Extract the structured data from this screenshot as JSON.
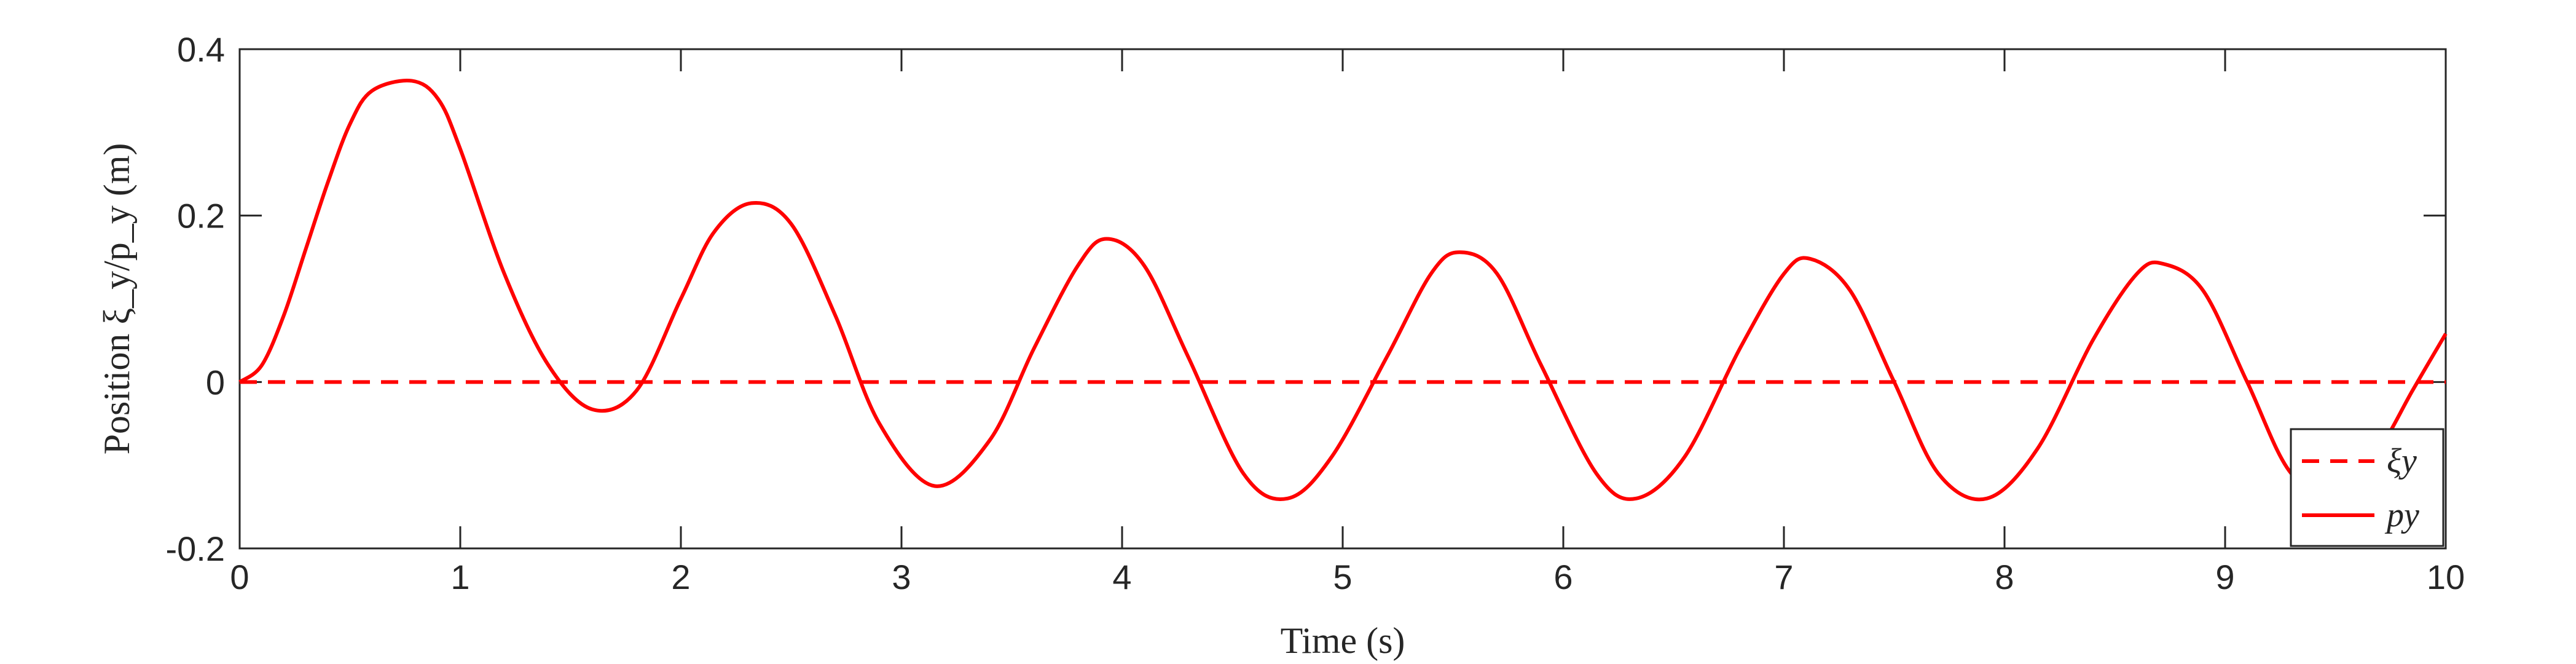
{
  "chart_data": {
    "type": "line",
    "xlabel": "Time (s)",
    "ylabel": "Position ξ_y/p_y (m)",
    "xlim": [
      0,
      10
    ],
    "ylim": [
      -0.2,
      0.4
    ],
    "xticks": [
      "0",
      "1",
      "2",
      "3",
      "4",
      "5",
      "6",
      "7",
      "8",
      "9",
      "10"
    ],
    "yticks": [
      "-0.2",
      "0",
      "0.2",
      "0.4"
    ],
    "grid": false,
    "legend_position": "bottom-right",
    "series": [
      {
        "name": "ξy",
        "style": "dashed",
        "color": "#ff0000",
        "x": [
          0,
          10
        ],
        "y": [
          0,
          0
        ]
      },
      {
        "name": "py",
        "style": "solid",
        "color": "#ff0000",
        "x": [
          0,
          0.1,
          0.2,
          0.3,
          0.4,
          0.5,
          0.6,
          0.78,
          0.9,
          1.0,
          1.2,
          1.4,
          1.6,
          1.8,
          2.0,
          2.15,
          2.32,
          2.5,
          2.7,
          2.9,
          3.15,
          3.4,
          3.6,
          3.8,
          3.93,
          4.1,
          4.3,
          4.55,
          4.75,
          4.95,
          5.2,
          5.4,
          5.53,
          5.7,
          5.9,
          6.15,
          6.33,
          6.55,
          6.8,
          7.0,
          7.12,
          7.3,
          7.5,
          7.7,
          7.92,
          8.15,
          8.4,
          8.6,
          8.72,
          8.9,
          9.1,
          9.3,
          9.52,
          9.7,
          9.85,
          10.0
        ],
        "y": [
          0,
          0.02,
          0.08,
          0.16,
          0.24,
          0.31,
          0.35,
          0.362,
          0.34,
          0.28,
          0.13,
          0.02,
          -0.033,
          -0.01,
          0.1,
          0.18,
          0.215,
          0.19,
          0.08,
          -0.05,
          -0.125,
          -0.07,
          0.04,
          0.14,
          0.172,
          0.14,
          0.03,
          -0.11,
          -0.14,
          -0.09,
          0.03,
          0.13,
          0.156,
          0.13,
          0.02,
          -0.11,
          -0.14,
          -0.09,
          0.04,
          0.13,
          0.148,
          0.11,
          0.0,
          -0.11,
          -0.14,
          -0.08,
          0.05,
          0.13,
          0.142,
          0.11,
          0.0,
          -0.11,
          -0.135,
          -0.08,
          -0.01,
          0.058
        ]
      }
    ]
  }
}
